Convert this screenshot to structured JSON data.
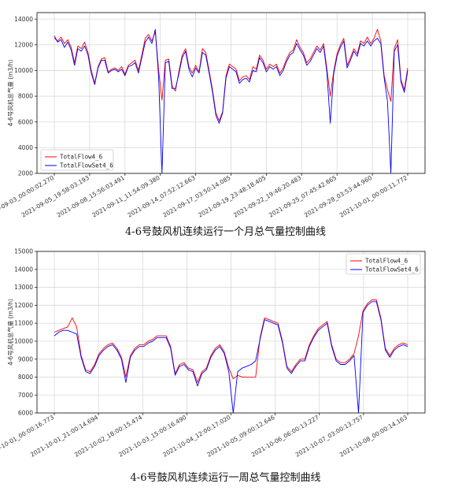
{
  "figures": [
    {
      "caption": "4-6号鼓风机连续运行一个月总气量控制曲线",
      "chart_data": {
        "type": "line",
        "ylabel": "4-6号风机总气量 (m3/h)",
        "ylim": [
          2000,
          14500
        ],
        "yticks": [
          2000,
          4000,
          6000,
          8000,
          10000,
          12000,
          14000
        ],
        "xticks": [
          "2021-09-03_00:00:02.270",
          "2021-09-05_19:58:03.193",
          "2021-09-08_15:56:03.491",
          "2021-09-11_11:54:09.380",
          "2021-09-14_07:52:12.663",
          "2021-09-17_03:50:14.085",
          "2021-09-19_23:48:18.405",
          "2021-09-22_19:46:20.483",
          "2021-09-25_07:45:42.865",
          "2021-09-28_03:53:44.960",
          "2021-10-01_00:00:11.772"
        ],
        "legend_position": "lower-left",
        "grid": true,
        "series": [
          {
            "name": "TotalFlow4_6",
            "color": "#ff0000",
            "values": [
              12500,
              12300,
              12600,
              12100,
              12400,
              11800,
              10600,
              11900,
              11700,
              12200,
              11400,
              10000,
              9000,
              10300,
              10900,
              11000,
              9900,
              10100,
              10200,
              10000,
              10300,
              9700,
              10400,
              10600,
              10800,
              10000,
              11200,
              12500,
              12800,
              12300,
              13000,
              10000,
              7700,
              10800,
              10900,
              8800,
              8400,
              9900,
              11200,
              11700,
              10300,
              9800,
              10400,
              9900,
              11700,
              11400,
              10000,
              8500,
              6700,
              6100,
              6800,
              9600,
              10500,
              10300,
              10100,
              9200,
              9500,
              9600,
              9300,
              10300,
              10100,
              11200,
              10800,
              10100,
              10500,
              10300,
              10500,
              9800,
              10200,
              10900,
              11400,
              11600,
              12400,
              11800,
              11400,
              10600,
              10900,
              11400,
              11900,
              11600,
              12100,
              10100,
              8000,
              9900,
              11300,
              12000,
              12500,
              10400,
              11000,
              11700,
              11300,
              12300,
              12100,
              12600,
              12100,
              12500,
              13200,
              12300,
              9600,
              8500,
              7600,
              11700,
              12400,
              9300,
              8500,
              10200
            ]
          },
          {
            "name": "TotalFlowSet4_6",
            "color": "#0000ff",
            "values": [
              12700,
              12200,
              12400,
              11800,
              12200,
              11600,
              10400,
              11700,
              11500,
              11900,
              11200,
              9800,
              8900,
              10200,
              10800,
              10800,
              9800,
              10000,
              10100,
              9900,
              10100,
              9600,
              10300,
              10400,
              10600,
              9800,
              11000,
              12200,
              12600,
              12100,
              13200,
              9400,
              2000,
              10600,
              10700,
              8600,
              8600,
              9700,
              11000,
              11500,
              10100,
              9500,
              10200,
              9800,
              11400,
              11200,
              9800,
              8300,
              6500,
              5900,
              6700,
              9400,
              10300,
              10100,
              9900,
              9000,
              9300,
              9400,
              9100,
              10000,
              9900,
              11000,
              10600,
              9900,
              10300,
              10100,
              10300,
              9600,
              10000,
              10700,
              11200,
              11400,
              12100,
              11600,
              11200,
              10400,
              10700,
              11200,
              11700,
              11400,
              11900,
              9800,
              5900,
              9700,
              11100,
              11800,
              12300,
              10200,
              10800,
              11500,
              11100,
              12100,
              11900,
              12300,
              11900,
              12300,
              12500,
              12100,
              9400,
              7600,
              2000,
              11500,
              12000,
              9100,
              8300,
              10000
            ]
          }
        ]
      }
    },
    {
      "caption": "4-6号鼓风机连续运行一周总气量控制曲线",
      "chart_data": {
        "type": "line",
        "ylabel": "4-6号风机总气量 (m3/h)",
        "ylim": [
          6000,
          15000
        ],
        "yticks": [
          6000,
          7000,
          8000,
          9000,
          10000,
          11000,
          12000,
          13000,
          14000,
          15000
        ],
        "xticks": [
          "2021-10-01_00:00:16.773",
          "2021-10-01_21:00:14.694",
          "2021-10-02_18:00:15.474",
          "2021-10-03_15:00:16.490",
          "2021-10-04_12:00:17.020",
          "2021-10-05_09:00:12.646",
          "2021-10-06_06:00:13.227",
          "2021-10-07_03:00:13.757",
          "2021-10-08_00:00:14.163"
        ],
        "legend_position": "top-right",
        "grid": true,
        "series": [
          {
            "name": "TotalFlow4_6",
            "color": "#ff0000",
            "values": [
              10500,
              10600,
              10700,
              10800,
              11300,
              10800,
              9200,
              8400,
              8300,
              8700,
              9300,
              9600,
              9800,
              9900,
              9600,
              9100,
              8000,
              9200,
              9600,
              9800,
              9800,
              10000,
              10100,
              10300,
              10300,
              10300,
              9700,
              8200,
              8700,
              8800,
              8500,
              8400,
              7700,
              8300,
              8500,
              9200,
              9600,
              9800,
              9400,
              8500,
              7900,
              8100,
              8000,
              8000,
              8000,
              8000,
              10200,
              11300,
              11200,
              11100,
              11000,
              10000,
              8600,
              8300,
              8700,
              9000,
              9000,
              9800,
              10300,
              10700,
              10900,
              11100,
              9800,
              9000,
              8800,
              8800,
              9000,
              9300,
              10300,
              11700,
              12100,
              12300,
              12300,
              11300,
              9600,
              9200,
              9600,
              9800,
              9900,
              9800
            ]
          },
          {
            "name": "TotalFlowSet4_6",
            "color": "#0000ff",
            "values": [
              10300,
              10500,
              10600,
              10600,
              10500,
              10400,
              9100,
              8300,
              8200,
              8600,
              9200,
              9500,
              9700,
              9800,
              9500,
              9000,
              7700,
              9100,
              9500,
              9700,
              9700,
              9900,
              10000,
              10200,
              10200,
              10200,
              9600,
              8100,
              8600,
              8700,
              8400,
              8300,
              7500,
              8200,
              8400,
              9100,
              9500,
              9700,
              9300,
              8300,
              6000,
              8300,
              8500,
              8600,
              8700,
              8900,
              10100,
              11200,
              11100,
              11000,
              10900,
              9900,
              8500,
              8200,
              8600,
              8900,
              8900,
              9700,
              10200,
              10600,
              10800,
              11000,
              9700,
              8900,
              8700,
              8700,
              8900,
              9200,
              6000,
              11600,
              12000,
              12200,
              12200,
              11200,
              9500,
              9100,
              9500,
              9700,
              9800,
              9700
            ]
          }
        ]
      }
    }
  ]
}
